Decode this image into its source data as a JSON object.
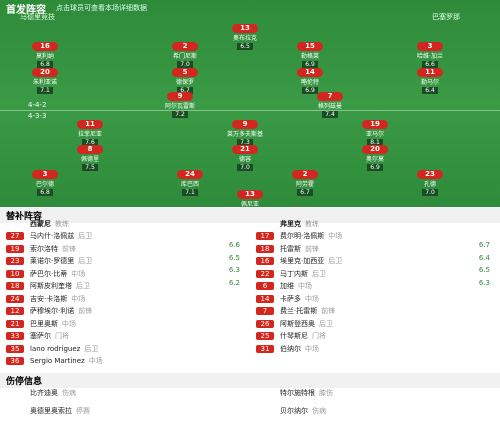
{
  "header": {
    "title": "首发阵容",
    "subtitle": "点击球员可查看本场详细数据"
  },
  "home": {
    "name": "马德里竞技",
    "formation": "4-4-2",
    "coach_label": "教练",
    "coach": "西蒙尼",
    "players": [
      {
        "number": "13",
        "name": "奥布拉克",
        "rating": "6.5"
      },
      {
        "number": "16",
        "name": "莫利纳",
        "rating": "6.8"
      },
      {
        "number": "2",
        "name": "希门尼斯",
        "rating": "7.0"
      },
      {
        "number": "15",
        "name": "勒格莱",
        "rating": "6.9"
      },
      {
        "number": "3",
        "name": "哈维·加兰",
        "rating": "6.6"
      },
      {
        "number": "20",
        "name": "朱利亚诺",
        "rating": "7.1"
      },
      {
        "number": "5",
        "name": "德保罗",
        "rating": "6.7"
      },
      {
        "number": "14",
        "name": "略伦特",
        "rating": "6.9"
      },
      {
        "number": "11",
        "name": "勒马尔",
        "rating": "6.4"
      },
      {
        "number": "9",
        "name": "阿尔瓦雷斯",
        "rating": "7.2"
      },
      {
        "number": "7",
        "name": "格列兹曼",
        "rating": "7.4"
      }
    ]
  },
  "away": {
    "name": "巴塞罗那",
    "formation": "4-3-3",
    "coach_label": "教练",
    "coach": "弗里克",
    "players": [
      {
        "number": "11",
        "name": "拉菲尼亚",
        "rating": "7.6"
      },
      {
        "number": "9",
        "name": "莱万多夫斯基",
        "rating": "7.3"
      },
      {
        "number": "19",
        "name": "亚马尔",
        "rating": "8.1"
      },
      {
        "number": "8",
        "name": "佩德里",
        "rating": "7.5"
      },
      {
        "number": "21",
        "name": "德容",
        "rating": "7.0"
      },
      {
        "number": "20",
        "name": "奥尔莫",
        "rating": "6.9"
      },
      {
        "number": "3",
        "name": "巴尔德",
        "rating": "6.8"
      },
      {
        "number": "24",
        "name": "库巴西",
        "rating": "7.1"
      },
      {
        "number": "2",
        "name": "阿劳霍",
        "rating": "6.7"
      },
      {
        "number": "23",
        "name": "孔德",
        "rating": "7.0"
      },
      {
        "number": "13",
        "name": "佩尼亚",
        "rating": "6.6"
      }
    ]
  },
  "subs": {
    "title": "替补阵容",
    "home": [
      {
        "number": "27",
        "name": "马内什·洛佩兹",
        "pos": "后卫",
        "rating": "6.6"
      },
      {
        "number": "19",
        "name": "索尔洛特",
        "pos": "前锋",
        "rating": "6.5"
      },
      {
        "number": "23",
        "name": "莱诺尔·罗德里",
        "pos": "后卫",
        "rating": "6.3"
      },
      {
        "number": "10",
        "name": "萨巴尔·比蒂",
        "pos": "中场",
        "rating": "6.2"
      },
      {
        "number": "18",
        "name": "阿斯皮利奎塔",
        "pos": "后卫"
      },
      {
        "number": "24",
        "name": "吉安·卡洛斯",
        "pos": "中场"
      },
      {
        "number": "12",
        "name": "萨穆埃尔·利诺",
        "pos": "前锋"
      },
      {
        "number": "21",
        "name": "巴里奥斯",
        "pos": "中场"
      },
      {
        "number": "33",
        "name": "塞萨尔",
        "pos": "门将"
      },
      {
        "number": "35",
        "name": "lano rodriguez",
        "pos": "后卫"
      },
      {
        "number": "36",
        "name": "Sergio Martinez",
        "pos": "中场"
      }
    ],
    "away": [
      {
        "number": "17",
        "name": "费尔明·洛佩斯",
        "pos": "中场",
        "rating": "6.7"
      },
      {
        "number": "18",
        "name": "托雷斯",
        "pos": "前锋",
        "rating": "6.4"
      },
      {
        "number": "16",
        "name": "埃里克·加西亚",
        "pos": "后卫",
        "rating": "6.5"
      },
      {
        "number": "22",
        "name": "马丁内斯",
        "pos": "后卫",
        "rating": "6.3"
      },
      {
        "number": "6",
        "name": "加维",
        "pos": "中场"
      },
      {
        "number": "14",
        "name": "卡萨多",
        "pos": "中场"
      },
      {
        "number": "7",
        "name": "费兰·托雷斯",
        "pos": "前锋"
      },
      {
        "number": "26",
        "name": "阿斯登西奥",
        "pos": "后卫"
      },
      {
        "number": "25",
        "name": "什琴斯尼",
        "pos": "门将"
      },
      {
        "number": "31",
        "name": "伯纳尔",
        "pos": "中场"
      }
    ]
  },
  "injuries": {
    "title": "伤停信息",
    "home": [
      {
        "name": "比齐迪奥",
        "note": "伤病"
      },
      {
        "name": "奥德里奥索拉",
        "note": "停赛"
      }
    ],
    "away": [
      {
        "name": "特尔施特根",
        "note": "膝伤"
      },
      {
        "name": "贝尔纳尔",
        "note": "伤病"
      }
    ]
  }
}
